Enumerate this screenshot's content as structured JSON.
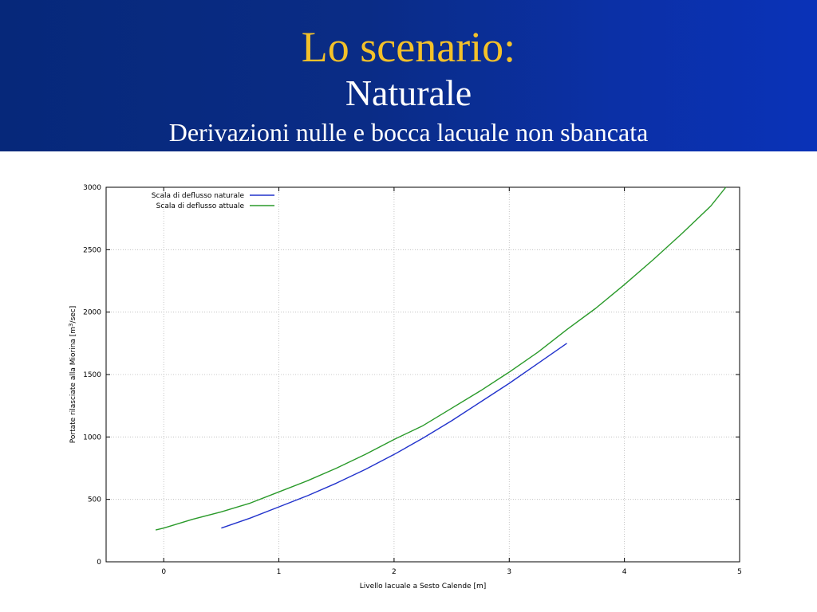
{
  "slide": {
    "title": "Lo scenario:",
    "subtitle": "Naturale",
    "subtitle2": "Derivazioni nulle e bocca lacuale non sbancata"
  },
  "chart_data": {
    "type": "line",
    "title": "",
    "xlabel": "Livello lacuale a Sesto Calende [m]",
    "ylabel_prefix": "Portate rilasciate alla Miorina [m",
    "ylabel_sup": "3",
    "ylabel_suffix": "/sec]",
    "xlim": [
      -0.5,
      5
    ],
    "ylim": [
      0,
      3000
    ],
    "xticks": [
      0,
      1,
      2,
      3,
      4,
      5
    ],
    "yticks": [
      0,
      500,
      1000,
      1500,
      2000,
      2500,
      3000
    ],
    "grid": true,
    "legend_position": "top-left",
    "series": [
      {
        "name": "Scala di deflusso naturale",
        "color": "#2233cc",
        "x": [
          0.5,
          0.75,
          1.0,
          1.25,
          1.5,
          1.75,
          2.0,
          2.25,
          2.5,
          2.75,
          3.0,
          3.25,
          3.5
        ],
        "y": [
          270,
          350,
          440,
          530,
          630,
          740,
          860,
          990,
          1130,
          1280,
          1430,
          1590,
          1750
        ]
      },
      {
        "name": "Scala di deflusso attuale",
        "color": "#2a9a2a",
        "x": [
          -0.07,
          0.0,
          0.25,
          0.5,
          0.75,
          1.0,
          1.25,
          1.5,
          1.75,
          2.0,
          2.25,
          2.5,
          2.75,
          3.0,
          3.25,
          3.5,
          3.75,
          4.0,
          4.25,
          4.5,
          4.75,
          4.88
        ],
        "y": [
          255,
          270,
          340,
          400,
          470,
          560,
          650,
          750,
          860,
          980,
          1090,
          1230,
          1370,
          1520,
          1680,
          1860,
          2030,
          2220,
          2420,
          2630,
          2850,
          3000
        ]
      }
    ]
  }
}
